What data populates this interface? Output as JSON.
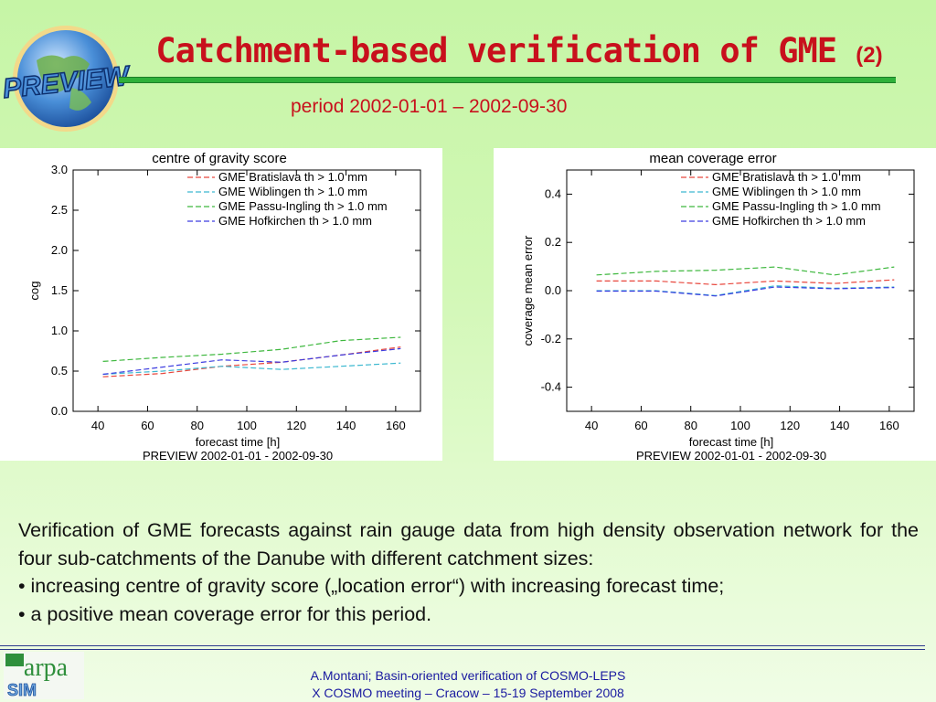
{
  "slide": {
    "title": "Catchment-based verification of GME",
    "title_number": "(2)",
    "subtitle": "period 2002-01-01 – 2002-09-30"
  },
  "logo": {
    "text": "PREVIEW"
  },
  "body": {
    "paragraph": "Verification of GME forecasts against rain gauge data from high density observation network for the four sub-catchments of the Danube with different catchment sizes:",
    "bullets": [
      "• increasing centre of gravity score („location error“) with increasing forecast time;",
      "• a positive mean coverage error for this period."
    ]
  },
  "footer": {
    "line1": "A.Montani; Basin-oriented verification of COSMO-LEPS",
    "line2": "X COSMO meeting – Cracow – 15-19 September 2008",
    "logo_text_top": "arpa",
    "logo_text_bottom": "SIM"
  },
  "colors": {
    "title_red": "#c8101c",
    "rule_green": "#2fb03a",
    "footer_blue": "#1a1aa0",
    "series_red": "#e8473d",
    "series_cyan": "#3cb8d0",
    "series_green": "#3fb83f",
    "series_blue": "#3d3de0"
  },
  "chart_data": [
    {
      "type": "line",
      "title": "centre of gravity score",
      "xlabel": "forecast time [h]",
      "ylabel": "cog",
      "footnote": "PREVIEW 2002-01-01 - 2002-09-30",
      "xlim": [
        30,
        170
      ],
      "ylim": [
        0.0,
        3.0
      ],
      "xticks": [
        40,
        60,
        80,
        100,
        120,
        140,
        160
      ],
      "yticks": [
        0.0,
        0.5,
        1.0,
        1.5,
        2.0,
        2.5,
        3.0
      ],
      "ytick_labels": [
        "0.0",
        "0.5",
        "1.0",
        "1.5",
        "2.0",
        "2.5",
        "3.0"
      ],
      "grid": false,
      "legend_position": "top-right",
      "x": [
        42,
        66,
        90,
        114,
        138,
        162
      ],
      "series": [
        {
          "name": "GME  Bratislava th > 1.0 mm",
          "color": "#e8473d",
          "values": [
            0.43,
            0.47,
            0.56,
            0.61,
            0.7,
            0.8
          ]
        },
        {
          "name": "GME  Wiblingen th > 1.0 mm",
          "color": "#3cb8d0",
          "values": [
            0.46,
            0.5,
            0.56,
            0.52,
            0.56,
            0.6
          ]
        },
        {
          "name": "GME  Passu-Ingling th > 1.0 mm",
          "color": "#3fb83f",
          "values": [
            0.62,
            0.67,
            0.71,
            0.77,
            0.88,
            0.92
          ]
        },
        {
          "name": "GME  Hofkirchen th > 1.0 mm",
          "color": "#3d3de0",
          "values": [
            0.46,
            0.55,
            0.64,
            0.61,
            0.7,
            0.78
          ]
        }
      ]
    },
    {
      "type": "line",
      "title": "mean coverage error",
      "xlabel": "forecast time [h]",
      "ylabel": "coverage mean error",
      "footnote": "PREVIEW 2002-01-01 - 2002-09-30",
      "xlim": [
        30,
        170
      ],
      "ylim": [
        -0.5,
        0.5
      ],
      "xticks": [
        40,
        60,
        80,
        100,
        120,
        140,
        160
      ],
      "yticks": [
        -0.4,
        -0.2,
        0.0,
        0.2,
        0.4
      ],
      "ytick_labels": [
        "-0.4",
        "-0.2",
        "0.0",
        "0.2",
        "0.4"
      ],
      "grid": false,
      "legend_position": "top-right",
      "x": [
        42,
        66,
        90,
        114,
        138,
        162
      ],
      "series": [
        {
          "name": "GME  Bratislava th > 1.0 mm",
          "color": "#e8473d",
          "values": [
            0.04,
            0.04,
            0.025,
            0.04,
            0.03,
            0.045
          ]
        },
        {
          "name": "GME  Wiblingen th > 1.0 mm",
          "color": "#3cb8d0",
          "values": [
            0.0,
            0.0,
            -0.02,
            0.02,
            0.01,
            0.015
          ]
        },
        {
          "name": "GME  Passu-Ingling th > 1.0 mm",
          "color": "#3fb83f",
          "values": [
            0.065,
            0.08,
            0.085,
            0.098,
            0.065,
            0.098
          ]
        },
        {
          "name": "GME  Hofkirchen th > 1.0 mm",
          "color": "#3d3de0",
          "values": [
            -0.002,
            -0.002,
            -0.022,
            0.015,
            0.008,
            0.013
          ]
        }
      ]
    }
  ]
}
